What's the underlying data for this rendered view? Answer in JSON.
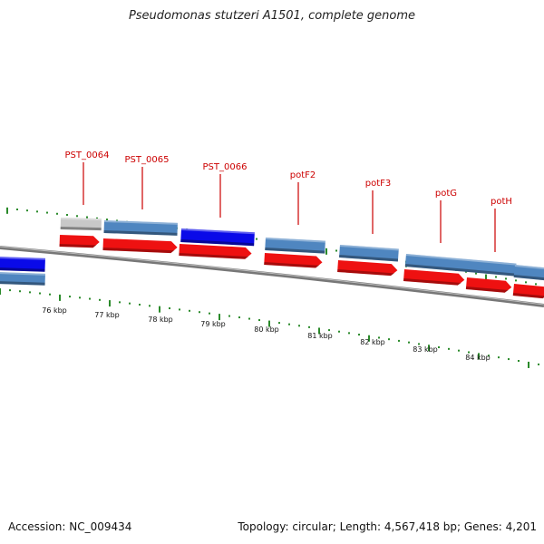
{
  "header": {
    "title": "Pseudomonas stutzeri A1501, complete genome"
  },
  "footer": {
    "accession": "Accession: NC_009434",
    "summary": "Topology: circular; Length: 4,567,418 bp; Genes: 4,201"
  },
  "colors": {
    "cds_red": "#ee1111",
    "gene_steelblue": "#4f86c0",
    "feature_blue": "#0a0ae8",
    "feature_gray": "#c8c8c8",
    "tick_green": "#2a8a2a",
    "backbone": "#8a8a8a",
    "label_red": "#cc0000"
  },
  "genome_map": {
    "kbp_ticks": [
      "76 kbp",
      "77 kbp",
      "78 kbp",
      "79 kbp",
      "80 kbp",
      "81 kbp",
      "82 kbp",
      "83 kbp",
      "84 kbp"
    ],
    "gene_labels": [
      "PST_0064",
      "PST_0065",
      "PST_0066",
      "potF2",
      "potF3",
      "potG",
      "potH"
    ]
  }
}
